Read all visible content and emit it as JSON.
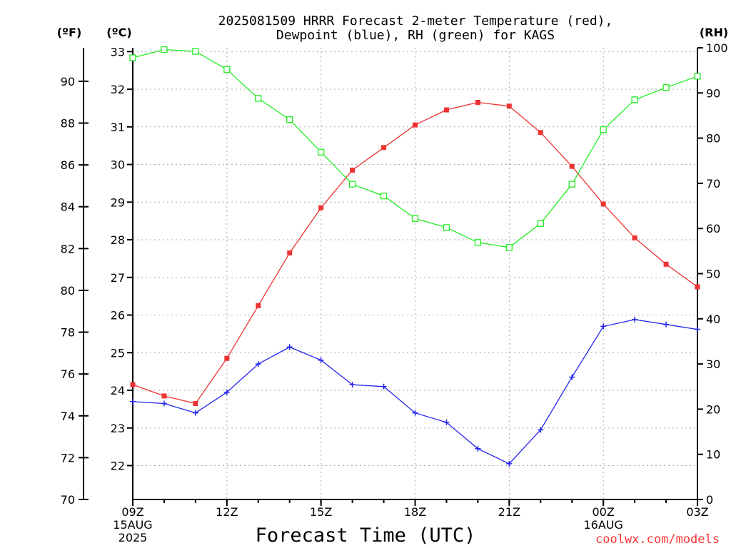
{
  "chart_data": {
    "type": "line",
    "title_lines": [
      "2025081509 HRRR Forecast 2-meter Temperature (red),",
      "Dewpoint (blue), RH (green) for KAGS"
    ],
    "xlabel": "Forecast Time (UTC)",
    "credit": "coolwx.com/models",
    "unit_labels": {
      "fahrenheit": "(ºF)",
      "celsius": "(ºC)",
      "rh": "(RH)"
    },
    "x": [
      9,
      10,
      11,
      12,
      13,
      14,
      15,
      16,
      17,
      18,
      19,
      20,
      21,
      22,
      23,
      24,
      25,
      26,
      27
    ],
    "x_ticks": [
      {
        "x": 9,
        "lines": [
          "09Z",
          "15AUG",
          "2025"
        ]
      },
      {
        "x": 12,
        "lines": [
          "12Z"
        ]
      },
      {
        "x": 15,
        "lines": [
          "15Z"
        ]
      },
      {
        "x": 18,
        "lines": [
          "18Z"
        ]
      },
      {
        "x": 21,
        "lines": [
          "21Z"
        ]
      },
      {
        "x": 24,
        "lines": [
          "00Z",
          "16AUG"
        ]
      },
      {
        "x": 27,
        "lines": [
          "03Z"
        ]
      }
    ],
    "xlim": [
      9,
      27
    ],
    "y_celsius": {
      "lim": [
        21.1,
        33.1
      ],
      "ticks": [
        22,
        23,
        24,
        25,
        26,
        27,
        28,
        29,
        30,
        31,
        32,
        33
      ]
    },
    "y_fahrenheit": {
      "lim": [
        70,
        91.6
      ],
      "ticks": [
        70,
        72,
        74,
        76,
        78,
        80,
        82,
        84,
        86,
        88,
        90
      ]
    },
    "y_rh": {
      "lim": [
        0,
        100
      ],
      "ticks": [
        0,
        10,
        20,
        30,
        40,
        50,
        60,
        70,
        80,
        90,
        100
      ]
    },
    "grid": true,
    "series": [
      {
        "name": "Temperature",
        "units": "celsius",
        "color": "#ee3333",
        "marker": "filled-square",
        "values": [
          24.15,
          23.85,
          23.65,
          24.85,
          26.25,
          27.65,
          28.85,
          29.85,
          30.45,
          31.05,
          31.45,
          31.65,
          31.55,
          30.85,
          29.95,
          28.95,
          28.05,
          27.35,
          26.75
        ]
      },
      {
        "name": "Dewpoint",
        "units": "celsius",
        "color": "#2222ee",
        "marker": "plus",
        "values": [
          23.7,
          23.65,
          23.4,
          23.95,
          24.7,
          25.15,
          24.8,
          24.15,
          24.1,
          23.4,
          23.15,
          22.45,
          22.05,
          22.95,
          24.35,
          25.7,
          25.88,
          25.75,
          25.62
        ]
      },
      {
        "name": "RH",
        "units": "rh",
        "color": "#22ee22",
        "marker": "open-square",
        "values": [
          97.8,
          99.6,
          99.2,
          95.2,
          88.8,
          84.1,
          76.9,
          69.8,
          67.2,
          62.2,
          60.2,
          56.9,
          55.8,
          61.1,
          69.8,
          81.9,
          88.5,
          91.2,
          93.7
        ]
      }
    ]
  }
}
